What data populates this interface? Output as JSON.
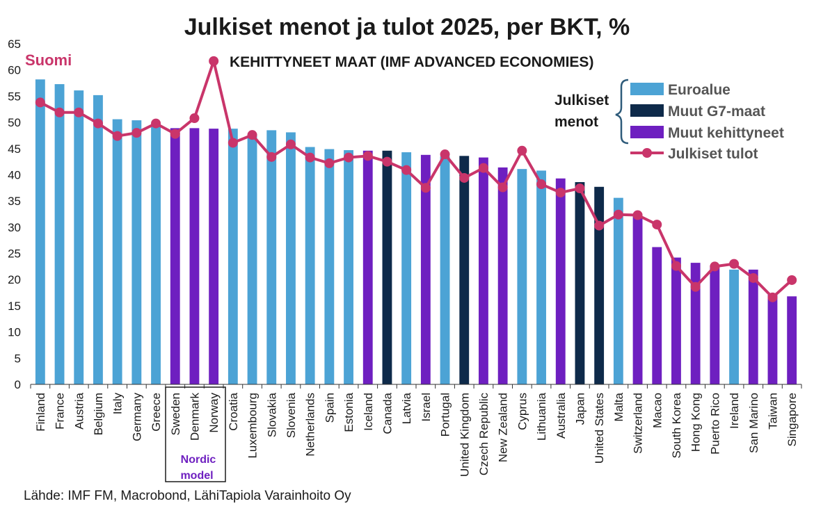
{
  "chart_data": {
    "type": "bar",
    "title": "Julkiset menot ja tulot 2025, per BKT, %",
    "subtitle": "KEHITTYNEET MAAT (IMF ADVANCED ECONOMIES)",
    "ylim": [
      0,
      65
    ],
    "yticks": [
      0,
      5,
      10,
      15,
      20,
      25,
      30,
      35,
      40,
      45,
      50,
      55,
      60,
      65
    ],
    "grid": false,
    "legend_position": "top-right",
    "legend_group_label": [
      "Julkiset",
      "menot"
    ],
    "categories": [
      "Finland",
      "France",
      "Austria",
      "Belgium",
      "Italy",
      "Germany",
      "Greece",
      "Sweden",
      "Denmark",
      "Norway",
      "Croatia",
      "Luxembourg",
      "Slovakia",
      "Slovenia",
      "Netherlands",
      "Spain",
      "Estonia",
      "Iceland",
      "Canada",
      "Latvia",
      "Israel",
      "Portugal",
      "United Kingdom",
      "Czech Republic",
      "New Zealand",
      "Cyprus",
      "Lithuania",
      "Australia",
      "Japan",
      "United States",
      "Malta",
      "Switzerland",
      "Macao",
      "South Korea",
      "Hong Kong",
      "Puerto Rico",
      "Ireland",
      "San Marino",
      "Taiwan",
      "Singapore"
    ],
    "bar_groups": [
      "euro",
      "euro",
      "euro",
      "euro",
      "euro",
      "euro",
      "euro",
      "adv",
      "adv",
      "adv",
      "euro",
      "euro",
      "euro",
      "euro",
      "euro",
      "euro",
      "euro",
      "adv",
      "g7",
      "euro",
      "adv",
      "euro",
      "g7",
      "adv",
      "adv",
      "euro",
      "euro",
      "adv",
      "g7",
      "g7",
      "euro",
      "adv",
      "adv",
      "adv",
      "adv",
      "adv",
      "euro",
      "adv",
      "adv",
      "adv"
    ],
    "groups": {
      "euro": {
        "name": "Euroalue",
        "color": "#4ca3d5"
      },
      "g7": {
        "name": "Muut G7-maat",
        "color": "#0e2a4a"
      },
      "adv": {
        "name": "Muut kehittyneet",
        "color": "#6e1fc0"
      }
    },
    "series": [
      {
        "name": "Julkiset menot",
        "values": [
          58.2,
          57.3,
          56.1,
          55.2,
          50.6,
          50.4,
          49.2,
          48.9,
          48.9,
          48.8,
          48.8,
          47.8,
          48.5,
          48.1,
          45.3,
          44.9,
          44.7,
          44.6,
          44.6,
          44.3,
          43.8,
          43.5,
          43.6,
          43.3,
          41.4,
          41.1,
          40.8,
          39.3,
          38.6,
          37.7,
          35.6,
          32.1,
          26.2,
          24.2,
          23.2,
          22.7,
          21.9,
          21.9,
          17.1,
          16.8
        ]
      },
      {
        "name": "Julkiset tulot",
        "color": "#c9356a",
        "values": [
          53.8,
          51.9,
          51.9,
          49.8,
          47.4,
          48.0,
          49.8,
          47.8,
          50.8,
          61.7,
          46.1,
          47.6,
          43.4,
          45.8,
          43.3,
          42.2,
          43.3,
          43.6,
          42.5,
          40.9,
          37.5,
          43.9,
          39.4,
          41.3,
          37.6,
          44.6,
          38.2,
          36.6,
          37.4,
          30.3,
          32.4,
          32.3,
          30.5,
          22.6,
          18.6,
          22.5,
          23.0,
          20.3,
          16.6,
          19.9
        ]
      }
    ],
    "annotations": {
      "suomi": "Suomi",
      "nordic_line1": "Nordic",
      "nordic_line2": "model"
    }
  },
  "source": "Lähde: IMF FM, Macrobond, LähiTapiola Varainhoito Oy",
  "colors": {
    "accent": "#c9356a",
    "nordic_text": "#6e1fc0",
    "axis": "#333333"
  }
}
